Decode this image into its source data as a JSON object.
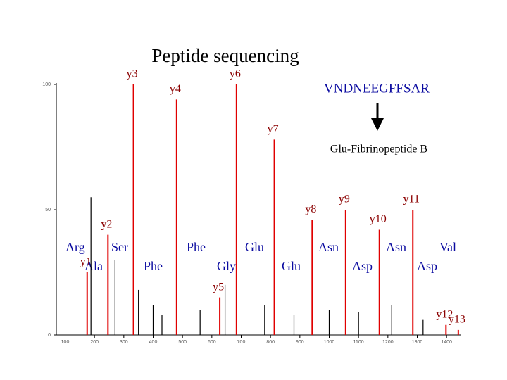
{
  "chart_data": {
    "type": "spectrum",
    "title": "Peptide sequencing",
    "sequence": "VNDNEEGFFSAR",
    "subtitle": "Glu-Fibrinopeptide B",
    "x": [
      175,
      188,
      246,
      270,
      333,
      350,
      400,
      430,
      480,
      560,
      627,
      645,
      684,
      780,
      813,
      880,
      942,
      1000,
      1056,
      1100,
      1171,
      1213,
      1285,
      1320,
      1398,
      1440
    ],
    "values": [
      25,
      55,
      40,
      30,
      100,
      18,
      12,
      8,
      94,
      10,
      15,
      20,
      100,
      12,
      78,
      8,
      46,
      10,
      50,
      9,
      42,
      12,
      50,
      6,
      4,
      2
    ],
    "peak_labels": [
      "y1",
      null,
      "y2",
      null,
      "y3",
      null,
      null,
      null,
      "y4",
      null,
      "y5",
      null,
      "y6",
      null,
      "y7",
      null,
      "y8",
      null,
      "y9",
      null,
      "y10",
      null,
      "y11",
      null,
      "y12",
      "y13"
    ],
    "highlight_color": "#e00000",
    "color": "#000000",
    "xlim": [
      70,
      1450
    ],
    "ylim": [
      0,
      100
    ],
    "xticks": [
      100,
      200,
      300,
      400,
      500,
      600,
      700,
      800,
      900,
      1000,
      1100,
      1200,
      1300,
      1400
    ],
    "yticks": [
      0,
      50,
      100
    ],
    "annotations": [
      "Arg",
      "Ala",
      "Ser",
      "Phe",
      "Phe",
      "Gly",
      "Glu",
      "Glu",
      "Asn",
      "Asp",
      "Asn",
      "Asp",
      "Val"
    ]
  }
}
